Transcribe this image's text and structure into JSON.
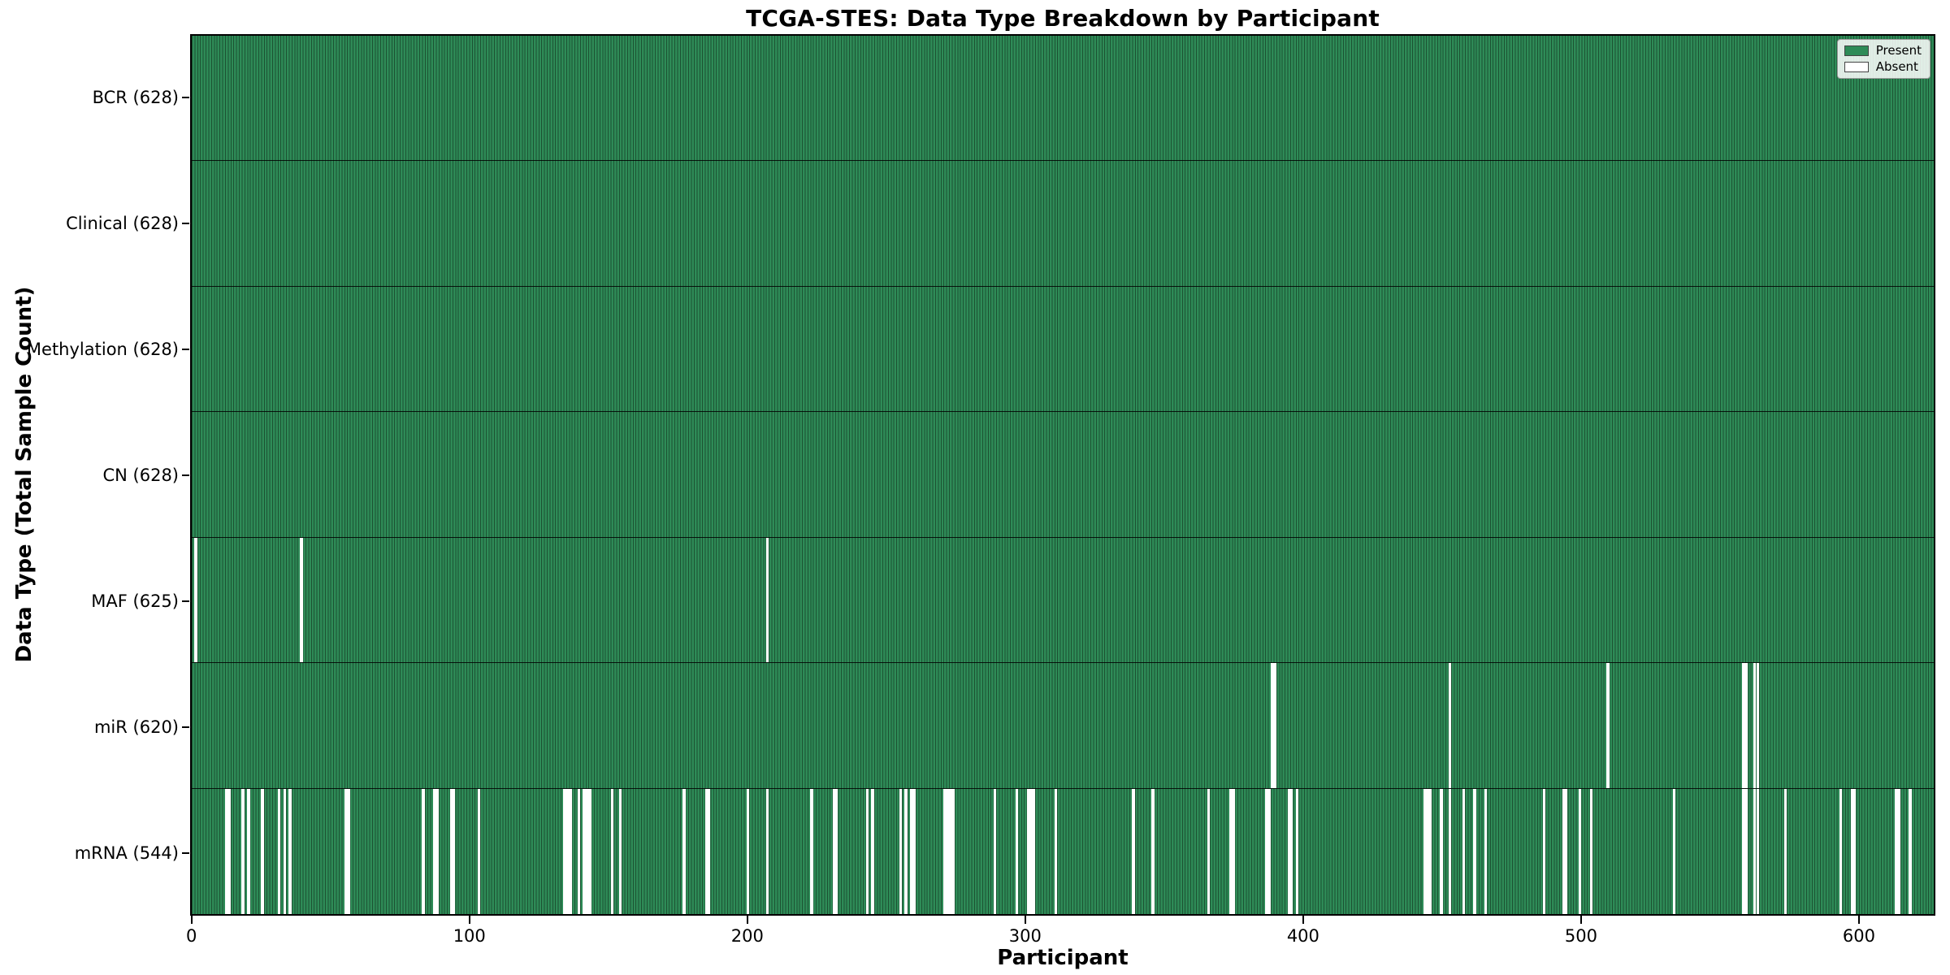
{
  "chart_data": {
    "type": "heatmap",
    "title": "TCGA-STES: Data Type Breakdown by Participant",
    "xlabel": "Participant",
    "ylabel": "Data Type (Total Sample Count)",
    "n_participants": 628,
    "x_range": [
      -0.5,
      627.5
    ],
    "x_ticks": [
      0,
      100,
      200,
      300,
      400,
      500,
      600
    ],
    "grid": false,
    "legend": {
      "position": "upper right",
      "entries": [
        {
          "label": "Present",
          "color": "#2e8b57"
        },
        {
          "label": "Absent",
          "color": "#ffffff"
        }
      ]
    },
    "colors": {
      "present": "#2e8b57",
      "absent": "#ffffff",
      "cell_edge": "rgba(10,25,15,0.5)",
      "axis": "#000000"
    },
    "rows": [
      {
        "name": "BCR",
        "label": "BCR (628)",
        "count": 628,
        "absent": []
      },
      {
        "name": "Clinical",
        "label": "Clinical (628)",
        "count": 628,
        "absent": []
      },
      {
        "name": "Methylation",
        "label": "Methylation (628)",
        "count": 628,
        "absent": []
      },
      {
        "name": "CN",
        "label": "CN (628)",
        "count": 628,
        "absent": []
      },
      {
        "name": "MAF",
        "label": "MAF (625)",
        "count": 625,
        "absent": [
          1,
          39,
          207
        ]
      },
      {
        "name": "miR",
        "label": "miR (620)",
        "count": 620,
        "absent": [
          389,
          390,
          453,
          510,
          559,
          560,
          563,
          564
        ]
      },
      {
        "name": "mRNA",
        "label": "mRNA (544)",
        "count": 544,
        "absent": [
          12,
          13,
          18,
          20,
          25,
          31,
          33,
          35,
          55,
          56,
          83,
          87,
          88,
          93,
          94,
          103,
          134,
          135,
          136,
          139,
          141,
          142,
          143,
          151,
          154,
          177,
          185,
          186,
          200,
          207,
          223,
          231,
          232,
          243,
          245,
          255,
          257,
          259,
          260,
          271,
          272,
          273,
          274,
          289,
          297,
          301,
          302,
          303,
          311,
          339,
          346,
          366,
          374,
          375,
          387,
          388,
          395,
          396,
          398,
          444,
          445,
          446,
          450,
          453,
          458,
          462,
          466,
          487,
          494,
          495,
          500,
          504,
          534,
          559,
          560,
          563,
          564,
          574,
          594,
          598,
          599,
          614,
          615,
          619
        ]
      }
    ]
  }
}
